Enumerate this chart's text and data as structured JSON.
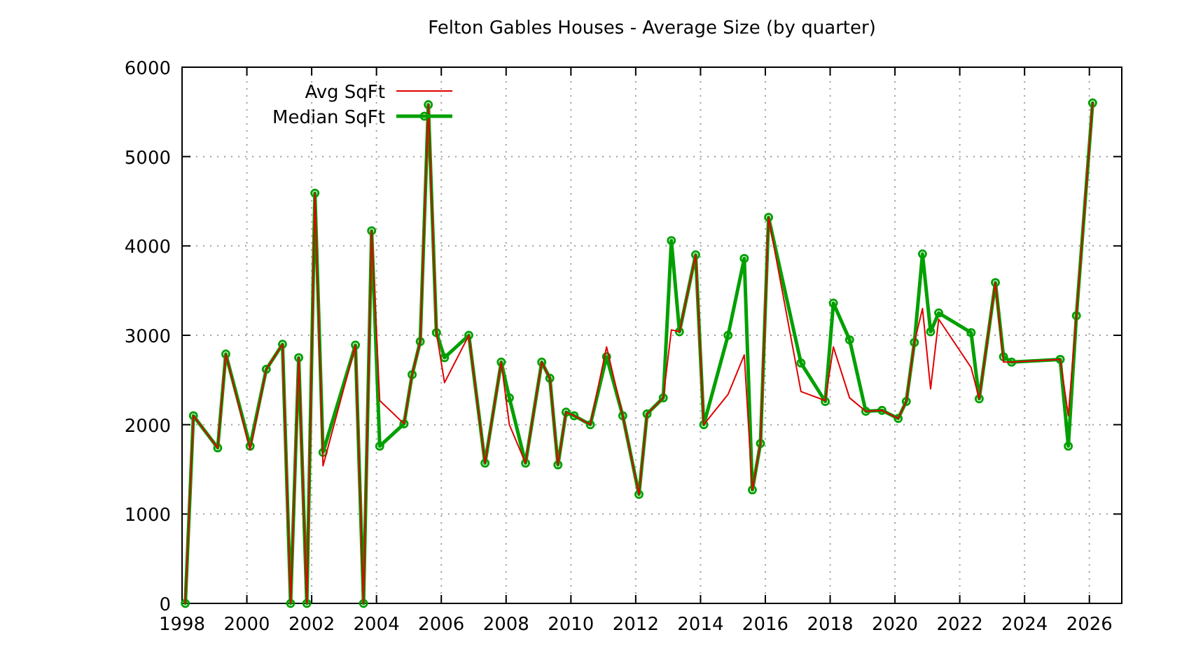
{
  "chart_data": {
    "type": "line",
    "title": "Felton Gables Houses - Average Size (by quarter)",
    "xlim": [
      1998,
      2027
    ],
    "ylim": [
      0,
      6000
    ],
    "xticks": [
      1998,
      2000,
      2002,
      2004,
      2006,
      2008,
      2010,
      2012,
      2014,
      2016,
      2018,
      2020,
      2022,
      2024,
      2026
    ],
    "yticks": [
      0,
      1000,
      2000,
      3000,
      4000,
      5000,
      6000
    ],
    "grid": true,
    "legend": "top left",
    "x": [
      1998.1,
      1998.35,
      1999.1,
      1999.35,
      2000.1,
      2000.6,
      2001.1,
      2001.35,
      2001.6,
      2001.85,
      2002.1,
      2002.35,
      2003.35,
      2003.6,
      2003.85,
      2004.1,
      2004.85,
      2005.1,
      2005.35,
      2005.6,
      2005.85,
      2006.1,
      2006.85,
      2007.35,
      2007.85,
      2008.1,
      2008.6,
      2009.1,
      2009.35,
      2009.6,
      2009.85,
      2010.1,
      2010.6,
      2011.1,
      2011.6,
      2012.1,
      2012.35,
      2012.85,
      2013.1,
      2013.35,
      2013.85,
      2014.1,
      2014.85,
      2015.35,
      2015.6,
      2015.85,
      2016.1,
      2017.1,
      2017.85,
      2018.1,
      2018.6,
      2019.1,
      2019.6,
      2020.1,
      2020.35,
      2020.6,
      2020.85,
      2021.1,
      2021.35,
      2022.35,
      2022.6,
      2023.1,
      2023.35,
      2023.6,
      2025.1,
      2025.35,
      2025.6,
      2026.1
    ],
    "series": [
      {
        "name": "Avg SqFt",
        "color": "#e00000",
        "marker": "none",
        "values": [
          0,
          2100,
          1740,
          2790,
          1720,
          2620,
          2900,
          0,
          2750,
          0,
          4590,
          1540,
          2890,
          0,
          4170,
          2270,
          2010,
          2560,
          2930,
          5580,
          3030,
          2470,
          3000,
          1570,
          2700,
          2000,
          1570,
          2700,
          2520,
          1550,
          2140,
          2100,
          2000,
          2870,
          2100,
          1220,
          2120,
          2300,
          3060,
          3040,
          3900,
          2000,
          2340,
          2780,
          1270,
          1790,
          4320,
          2370,
          2270,
          2870,
          2300,
          2150,
          2160,
          2070,
          2260,
          2920,
          3300,
          2400,
          3180,
          2640,
          2290,
          3590,
          2700,
          2700,
          2730,
          2100,
          3220,
          5600
        ]
      },
      {
        "name": "Median SqFt",
        "color": "#00a000",
        "marker": "circle",
        "values": [
          0,
          2100,
          1740,
          2790,
          1760,
          2620,
          2900,
          0,
          2750,
          0,
          4590,
          1690,
          2890,
          0,
          4170,
          1760,
          2010,
          2560,
          2930,
          5580,
          3030,
          2750,
          3000,
          1570,
          2700,
          2300,
          1570,
          2700,
          2520,
          1550,
          2140,
          2100,
          2000,
          2760,
          2100,
          1220,
          2120,
          2300,
          4060,
          3040,
          3900,
          2000,
          3000,
          3860,
          1270,
          1790,
          4320,
          2690,
          2260,
          3360,
          2950,
          2150,
          2160,
          2070,
          2260,
          2920,
          3910,
          3040,
          3250,
          3030,
          2290,
          3590,
          2760,
          2700,
          2730,
          1760,
          3220,
          5600
        ]
      }
    ]
  }
}
